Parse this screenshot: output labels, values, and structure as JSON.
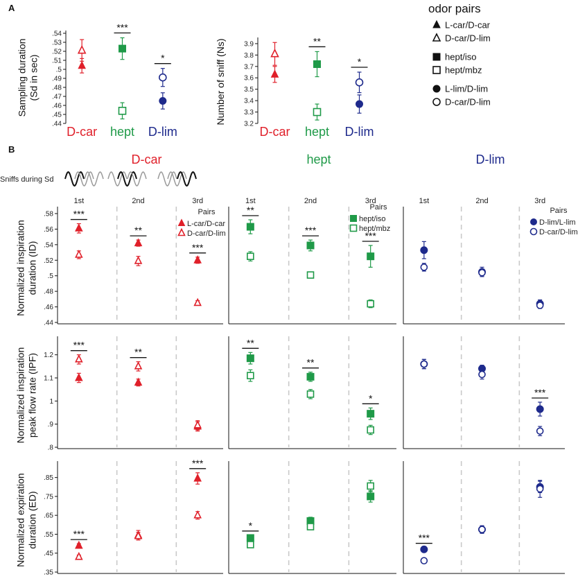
{
  "colors": {
    "red": "#e0202a",
    "green": "#1f9a48",
    "blue": "#1e2a8c",
    "dash": "#c9c9c9",
    "wave_dark": "#111111",
    "wave_light": "#9a9a9a"
  },
  "labels": {
    "panel_a": "A",
    "panel_b": "B",
    "sniffs_during_sd": "Sniffs during Sd",
    "pairs": "Pairs"
  },
  "legend": {
    "title": "odor pairs",
    "entries": [
      {
        "marker": "triangle",
        "filled": true,
        "label": "L-car/D-car"
      },
      {
        "marker": "triangle",
        "filled": false,
        "label": "D-car/D-lim"
      },
      {
        "marker": "square",
        "filled": true,
        "label": "hept/iso"
      },
      {
        "marker": "square",
        "filled": false,
        "label": "hept/mbz"
      },
      {
        "marker": "circle",
        "filled": true,
        "label": "L-lim/D-lim"
      },
      {
        "marker": "circle",
        "filled": false,
        "label": "D-car/D-lim"
      }
    ]
  },
  "group_legends": [
    {
      "group": "D-car",
      "color": "red",
      "marker": "triangle",
      "entries": [
        "L-car/D-car",
        "D-car/D-lim"
      ]
    },
    {
      "group": "hept",
      "color": "green",
      "marker": "square",
      "entries": [
        "hept/iso",
        "hept/mbz"
      ]
    },
    {
      "group": "D-lim",
      "color": "blue",
      "marker": "circle",
      "entries": [
        "D-lim/L-lim",
        "D-car/D-lim"
      ]
    }
  ],
  "groups": [
    {
      "name": "D-car",
      "color": "red"
    },
    {
      "name": "hept",
      "color": "green"
    },
    {
      "name": "D-lim",
      "color": "blue"
    }
  ],
  "sniff_labels": [
    "1st",
    "2nd",
    "3rd"
  ],
  "chart_data": [
    {
      "id": "A1",
      "type": "scatter",
      "ylabel": "Sampling duration (Sd in sec)",
      "ylabel_lines": [
        "Sampling duration",
        "(Sd in sec)"
      ],
      "yticks": [
        ".44",
        ".45",
        ".46",
        ".47",
        ".48",
        ".49",
        ".5",
        ".51",
        ".52",
        ".53",
        ".54"
      ],
      "ylim": [
        0.44,
        0.54
      ],
      "categories": [
        "D-car",
        "hept",
        "D-lim"
      ],
      "points": [
        {
          "cat": 0,
          "filled": true,
          "y": 0.504,
          "err": 0.008
        },
        {
          "cat": 0,
          "filled": false,
          "y": 0.521,
          "err": 0.012
        },
        {
          "cat": 1,
          "filled": true,
          "y": 0.523,
          "err": 0.012
        },
        {
          "cat": 1,
          "filled": false,
          "y": 0.454,
          "err": 0.009
        },
        {
          "cat": 2,
          "filled": true,
          "y": 0.465,
          "err": 0.009
        },
        {
          "cat": 2,
          "filled": false,
          "y": 0.491,
          "err": 0.01
        }
      ],
      "sig": [
        {
          "cat": 1,
          "stars": "***"
        },
        {
          "cat": 2,
          "stars": "*"
        }
      ]
    },
    {
      "id": "A2",
      "type": "scatter",
      "ylabel": "Number of sniff (Ns)",
      "ylabel_lines": [
        "Number of sniff (Ns)"
      ],
      "yticks": [
        "3.2",
        "3.3",
        "3.4",
        "3.5",
        "3.6",
        "3.7",
        "3.8",
        "3.9"
      ],
      "ylim": [
        3.2,
        3.93
      ],
      "categories": [
        "D-car",
        "hept",
        "D-lim"
      ],
      "points": [
        {
          "cat": 0,
          "filled": true,
          "y": 3.63,
          "err": 0.07
        },
        {
          "cat": 0,
          "filled": false,
          "y": 3.81,
          "err": 0.1
        },
        {
          "cat": 1,
          "filled": true,
          "y": 3.72,
          "err": 0.11
        },
        {
          "cat": 1,
          "filled": false,
          "y": 3.3,
          "err": 0.07
        },
        {
          "cat": 2,
          "filled": true,
          "y": 3.37,
          "err": 0.08
        },
        {
          "cat": 2,
          "filled": false,
          "y": 3.56,
          "err": 0.09
        }
      ],
      "sig": [
        {
          "cat": 1,
          "stars": "**"
        },
        {
          "cat": 2,
          "stars": "*"
        }
      ]
    },
    {
      "id": "ID",
      "type": "scatter",
      "ylabel_lines": [
        "Normalized inspiration",
        "duration (ID)"
      ],
      "yticks": [
        ".44",
        ".46",
        ".48",
        ".5",
        ".52",
        ".54",
        ".56",
        ".58"
      ],
      "ylim": [
        0.44,
        0.58
      ],
      "groups": [
        [
          {
            "filled": 0.561,
            "open": 0.527,
            "ef": 0.006,
            "eo": 0.005,
            "stars": "***"
          },
          {
            "filled": 0.542,
            "open": 0.519,
            "ef": 0.004,
            "eo": 0.006,
            "stars": "**"
          },
          {
            "filled": 0.52,
            "open": 0.465,
            "ef": 0.004,
            "eo": 0.003,
            "stars": "***"
          }
        ],
        [
          {
            "filled": 0.563,
            "open": 0.525,
            "ef": 0.009,
            "eo": 0.006,
            "stars": "**"
          },
          {
            "filled": 0.539,
            "open": 0.501,
            "ef": 0.007,
            "eo": 0.004,
            "stars": "***"
          },
          {
            "filled": 0.525,
            "open": 0.464,
            "ef": 0.014,
            "eo": 0.005,
            "stars": "***"
          }
        ],
        [
          {
            "filled": 0.533,
            "open": 0.511,
            "ef": 0.011,
            "eo": 0.005,
            "stars": ""
          },
          {
            "filled": 0.505,
            "open": 0.504,
            "ef": 0.006,
            "eo": 0.005,
            "stars": ""
          },
          {
            "filled": 0.464,
            "open": 0.462,
            "ef": 0.005,
            "eo": 0.004,
            "stars": ""
          }
        ]
      ]
    },
    {
      "id": "IPF",
      "type": "scatter",
      "ylabel_lines": [
        "Normalized inspiration",
        "peak flow rate (IPF)"
      ],
      "yticks": [
        ".8",
        ".9",
        "1",
        "1.1",
        "1.2"
      ],
      "ylim": [
        0.8,
        1.25
      ],
      "groups": [
        [
          {
            "filled": 1.1,
            "open": 1.18,
            "ef": 0.02,
            "eo": 0.02,
            "stars": "***"
          },
          {
            "filled": 1.08,
            "open": 1.15,
            "ef": 0.015,
            "eo": 0.02,
            "stars": "**"
          },
          {
            "filled": 0.89,
            "open": 0.895,
            "ef": 0.02,
            "eo": 0.02,
            "stars": ""
          }
        ],
        [
          {
            "filled": 1.185,
            "open": 1.11,
            "ef": 0.025,
            "eo": 0.025,
            "stars": "**"
          },
          {
            "filled": 1.105,
            "open": 1.03,
            "ef": 0.02,
            "eo": 0.02,
            "stars": "**"
          },
          {
            "filled": 0.945,
            "open": 0.875,
            "ef": 0.025,
            "eo": 0.02,
            "stars": "*"
          }
        ],
        [
          {
            "filled": 1.16,
            "open": 1.16,
            "ef": 0.02,
            "eo": 0.02,
            "stars": ""
          },
          {
            "filled": 1.14,
            "open": 1.115,
            "ef": 0.015,
            "eo": 0.02,
            "stars": ""
          },
          {
            "filled": 0.965,
            "open": 0.87,
            "ef": 0.03,
            "eo": 0.02,
            "stars": "***"
          }
        ]
      ]
    },
    {
      "id": "ED",
      "type": "scatter",
      "ylabel_lines": [
        "Normalized expiration",
        "duration (ED)"
      ],
      "yticks": [
        ".35",
        ".45",
        ".55",
        ".65",
        ".75",
        ".85"
      ],
      "ylim": [
        0.35,
        0.9
      ],
      "groups": [
        [
          {
            "filled": 0.49,
            "open": 0.43,
            "ef": 0.01,
            "eo": 0.01,
            "stars": "***"
          },
          {
            "filled": 0.545,
            "open": 0.54,
            "ef": 0.025,
            "eo": 0.02,
            "stars": ""
          },
          {
            "filled": 0.845,
            "open": 0.65,
            "ef": 0.03,
            "eo": 0.02,
            "stars": "***"
          }
        ],
        [
          {
            "filled": 0.53,
            "open": 0.495,
            "ef": 0.015,
            "eo": 0.01,
            "stars": "*"
          },
          {
            "filled": 0.62,
            "open": 0.59,
            "ef": 0.02,
            "eo": 0.015,
            "stars": ""
          },
          {
            "filled": 0.75,
            "open": 0.805,
            "ef": 0.03,
            "eo": 0.03,
            "stars": ""
          }
        ],
        [
          {
            "filled": 0.47,
            "open": 0.41,
            "ef": 0.01,
            "eo": 0.01,
            "stars": "***"
          },
          {
            "filled": 0.575,
            "open": 0.575,
            "ef": 0.02,
            "eo": 0.02,
            "stars": ""
          },
          {
            "filled": 0.8,
            "open": 0.79,
            "ef": 0.03,
            "eo": 0.045,
            "stars": ""
          }
        ]
      ]
    }
  ]
}
